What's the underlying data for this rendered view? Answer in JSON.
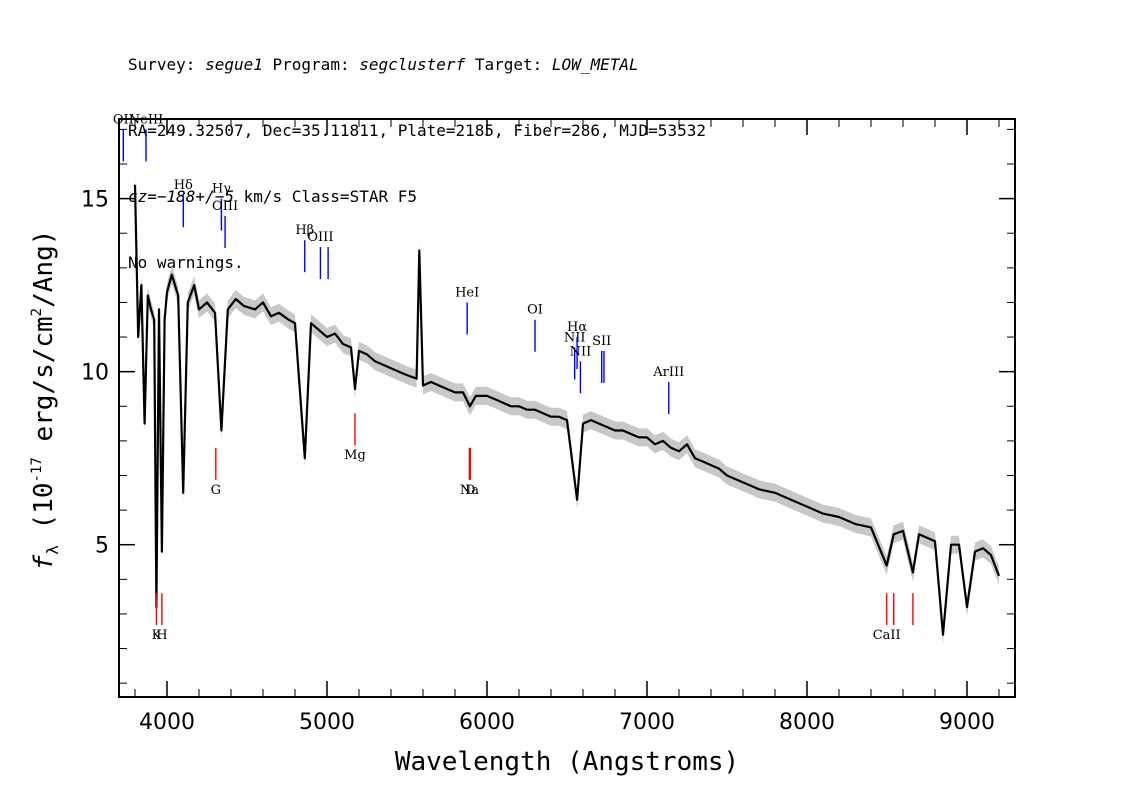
{
  "header": {
    "l1_survey_key": "Survey:",
    "l1_survey_val": "segue1",
    "l1_program_key": "Program:",
    "l1_program_val": "segclusterf",
    "l1_target_key": "Target:",
    "l1_target_val": "LOW_METAL",
    "line2": "RA=249.32507, Dec=35.11811, Plate=2185, Fiber=286, MJD=53532",
    "l3_cz": "cz=−188+/−5",
    "l3_rest": " km/s Class=STAR F5",
    "line4": "No warnings."
  },
  "chart_data": {
    "type": "line",
    "title": "",
    "xlabel": "Wavelength (Angstroms)",
    "ylabel": "f_λ (10^-17 erg/s/cm^2/Ang)",
    "xlim": [
      3700,
      9300
    ],
    "ylim": [
      0.6,
      17.3
    ],
    "x_ticks": [
      4000,
      5000,
      6000,
      7000,
      8000,
      9000
    ],
    "y_ticks": [
      5,
      10,
      15
    ],
    "grid": false,
    "series": [
      {
        "style": "flux (black)",
        "x": [
          3800,
          3820,
          3840,
          3860,
          3880,
          3900,
          3920,
          3934,
          3950,
          3968,
          3985,
          4000,
          4030,
          4070,
          4101,
          4130,
          4170,
          4200,
          4250,
          4300,
          4340,
          4380,
          4430,
          4480,
          4550,
          4600,
          4650,
          4700,
          4760,
          4800,
          4861,
          4900,
          4950,
          5000,
          5050,
          5100,
          5150,
          5175,
          5200,
          5250,
          5300,
          5350,
          5400,
          5450,
          5500,
          5560,
          5577,
          5600,
          5650,
          5700,
          5750,
          5800,
          5850,
          5893,
          5930,
          6000,
          6050,
          6100,
          6150,
          6200,
          6250,
          6300,
          6350,
          6400,
          6450,
          6500,
          6563,
          6600,
          6650,
          6700,
          6750,
          6800,
          6850,
          6900,
          6950,
          7000,
          7050,
          7100,
          7150,
          7200,
          7250,
          7300,
          7350,
          7400,
          7450,
          7500,
          7600,
          7700,
          7800,
          7900,
          8000,
          8100,
          8200,
          8300,
          8400,
          8498,
          8542,
          8600,
          8662,
          8700,
          8750,
          8800,
          8850,
          8900,
          8950,
          9000,
          9050,
          9100,
          9150,
          9200
        ],
        "y": [
          15.4,
          11.0,
          12.5,
          8.5,
          12.2,
          11.8,
          11.5,
          3.2,
          11.8,
          4.8,
          11.5,
          12.3,
          12.8,
          12.2,
          6.5,
          12.0,
          12.5,
          11.8,
          12.0,
          11.7,
          8.3,
          11.8,
          12.1,
          11.9,
          11.8,
          12.0,
          11.6,
          11.7,
          11.5,
          11.4,
          7.5,
          11.4,
          11.2,
          11.0,
          11.1,
          10.8,
          10.7,
          9.5,
          10.6,
          10.5,
          10.3,
          10.2,
          10.1,
          10.0,
          9.9,
          9.8,
          13.5,
          9.6,
          9.7,
          9.6,
          9.5,
          9.4,
          9.4,
          9.0,
          9.3,
          9.3,
          9.2,
          9.1,
          9.0,
          9.0,
          8.9,
          8.9,
          8.8,
          8.7,
          8.7,
          8.6,
          6.3,
          8.5,
          8.6,
          8.5,
          8.4,
          8.3,
          8.3,
          8.2,
          8.1,
          8.1,
          7.9,
          8.0,
          7.8,
          7.7,
          7.9,
          7.5,
          7.4,
          7.3,
          7.2,
          7.0,
          6.8,
          6.6,
          6.5,
          6.3,
          6.1,
          5.9,
          5.8,
          5.6,
          5.5,
          4.4,
          5.3,
          5.4,
          4.2,
          5.3,
          5.2,
          5.1,
          2.4,
          5.0,
          5.0,
          3.2,
          4.8,
          4.9,
          4.7,
          4.1
        ]
      }
    ],
    "lines": [
      {
        "label": "OII",
        "x": 3727,
        "y": 17.0,
        "color": "#0000ff"
      },
      {
        "label": "NeIII",
        "x": 3869,
        "y": 17.0,
        "color": "#0000ff"
      },
      {
        "label": "Hδ",
        "x": 4102,
        "y": 15.1,
        "color": "#0000ff"
      },
      {
        "label": "Hγ",
        "x": 4340,
        "y": 15.0,
        "color": "#0000ff"
      },
      {
        "label": "OIII",
        "x": 4363,
        "y": 14.5,
        "color": "#0000ff"
      },
      {
        "label": "Hβ",
        "x": 4861,
        "y": 13.8,
        "color": "#0000ff"
      },
      {
        "label": "OIII",
        "x": 4959,
        "y": 13.6,
        "color": "#0000ff"
      },
      {
        "label": "",
        "x": 5007,
        "y": 13.6,
        "color": "#0000ff"
      },
      {
        "label": "HeI",
        "x": 5876,
        "y": 12.0,
        "color": "#0000ff"
      },
      {
        "label": "OI",
        "x": 6300,
        "y": 11.5,
        "color": "#0000ff"
      },
      {
        "label": "NII",
        "x": 6548,
        "y": 10.7,
        "color": "#0000ff"
      },
      {
        "label": "Hα",
        "x": 6563,
        "y": 11.0,
        "color": "#0000ff"
      },
      {
        "label": "NII",
        "x": 6584,
        "y": 10.3,
        "color": "#0000ff"
      },
      {
        "label": "SII",
        "x": 6717,
        "y": 10.6,
        "color": "#0000ff"
      },
      {
        "label": "",
        "x": 6731,
        "y": 10.6,
        "color": "#0000ff"
      },
      {
        "label": "ArIII",
        "x": 7136,
        "y": 9.7,
        "color": "#0000ff"
      },
      {
        "label": "K",
        "x": 3934,
        "y": 3.6,
        "color": "#ff0000"
      },
      {
        "label": "H",
        "x": 3968,
        "y": 3.6,
        "color": "#ff0000"
      },
      {
        "label": "G",
        "x": 4305,
        "y": 7.8,
        "color": "#ff0000"
      },
      {
        "label": "Mg",
        "x": 5175,
        "y": 8.8,
        "color": "#ff0000"
      },
      {
        "label": "Na",
        "x": 5890,
        "y": 7.8,
        "color": "#ff0000"
      },
      {
        "label": "D",
        "x": 5896,
        "y": 7.8,
        "color": "#ff0000"
      },
      {
        "label": "CaII",
        "x": 8498,
        "y": 3.6,
        "color": "#ff0000"
      },
      {
        "label": "",
        "x": 8542,
        "y": 3.6,
        "color": "#ff0000"
      },
      {
        "label": "",
        "x": 8662,
        "y": 3.6,
        "color": "#ff0000"
      }
    ]
  }
}
